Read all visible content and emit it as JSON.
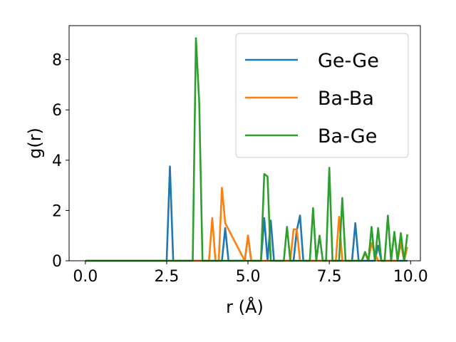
{
  "chart_data": {
    "type": "line",
    "title": "",
    "xlabel": "r (Å)",
    "ylabel": "g(r)",
    "xlim": [
      -0.5,
      10.3
    ],
    "ylim": [
      0,
      9.35
    ],
    "xticks": [
      0.0,
      2.5,
      5.0,
      7.5,
      10.0
    ],
    "xtick_labels": [
      "0.0",
      "2.5",
      "5.0",
      "7.5",
      "10.0"
    ],
    "yticks": [
      0,
      2,
      4,
      6,
      8
    ],
    "ytick_labels": [
      "0",
      "2",
      "4",
      "6",
      "8"
    ],
    "grid": false,
    "legend_position": "top-right",
    "series": [
      {
        "name": "Ge-Ge",
        "color": "#1f77b4",
        "x": [
          0.0,
          2.5,
          2.6,
          2.7,
          4.2,
          4.3,
          4.4,
          4.9,
          5.0,
          5.1,
          5.4,
          5.5,
          5.6,
          5.7,
          5.8,
          6.4,
          6.5,
          6.6,
          6.7,
          8.2,
          8.3,
          8.4,
          8.9,
          9.0,
          9.1,
          9.9
        ],
        "y": [
          0.0,
          0.0,
          3.75,
          0.0,
          0.0,
          1.3,
          0.0,
          0.0,
          1.0,
          0.0,
          0.0,
          1.7,
          0.0,
          1.6,
          0.0,
          0.0,
          1.2,
          1.8,
          0.0,
          0.0,
          1.5,
          0.0,
          0.0,
          0.6,
          0.0,
          0.0
        ]
      },
      {
        "name": "Ba-Ba",
        "color": "#ff7f0e",
        "x": [
          0.0,
          3.8,
          3.9,
          4.0,
          4.1,
          4.2,
          4.3,
          4.9,
          5.0,
          5.1,
          6.3,
          6.4,
          6.5,
          6.6,
          7.7,
          7.8,
          7.9,
          8.5,
          8.6,
          8.7,
          8.8,
          8.9,
          9.0,
          9.6,
          9.7,
          9.8,
          9.9
        ],
        "y": [
          0.0,
          0.0,
          1.7,
          0.0,
          0.0,
          2.9,
          1.5,
          0.0,
          1.0,
          0.0,
          0.0,
          1.25,
          1.25,
          0.0,
          0.0,
          1.75,
          0.0,
          0.0,
          0.3,
          0.0,
          0.7,
          0.3,
          0.0,
          0.0,
          0.7,
          0.0,
          0.55
        ]
      },
      {
        "name": "Ba-Ge",
        "color": "#2ca02c",
        "x": [
          0.0,
          3.3,
          3.4,
          3.5,
          3.6,
          5.4,
          5.5,
          5.6,
          5.7,
          6.1,
          6.2,
          6.3,
          6.9,
          7.0,
          7.1,
          7.2,
          7.3,
          7.4,
          7.5,
          7.6,
          7.8,
          7.9,
          8.0,
          8.5,
          8.6,
          8.7,
          8.8,
          8.9,
          9.0,
          9.1,
          9.2,
          9.3,
          9.4,
          9.5,
          9.6,
          9.7,
          9.8,
          9.9
        ],
        "y": [
          0.0,
          0.0,
          8.85,
          6.3,
          0.0,
          0.0,
          3.45,
          3.35,
          0.0,
          0.0,
          1.35,
          0.0,
          0.0,
          2.1,
          0.0,
          1.0,
          0.0,
          0.0,
          3.7,
          0.0,
          0.0,
          2.5,
          0.0,
          0.0,
          0.35,
          0.0,
          1.35,
          0.0,
          1.3,
          0.0,
          0.0,
          1.8,
          0.0,
          1.15,
          0.0,
          1.1,
          0.0,
          1.05
        ]
      }
    ]
  }
}
